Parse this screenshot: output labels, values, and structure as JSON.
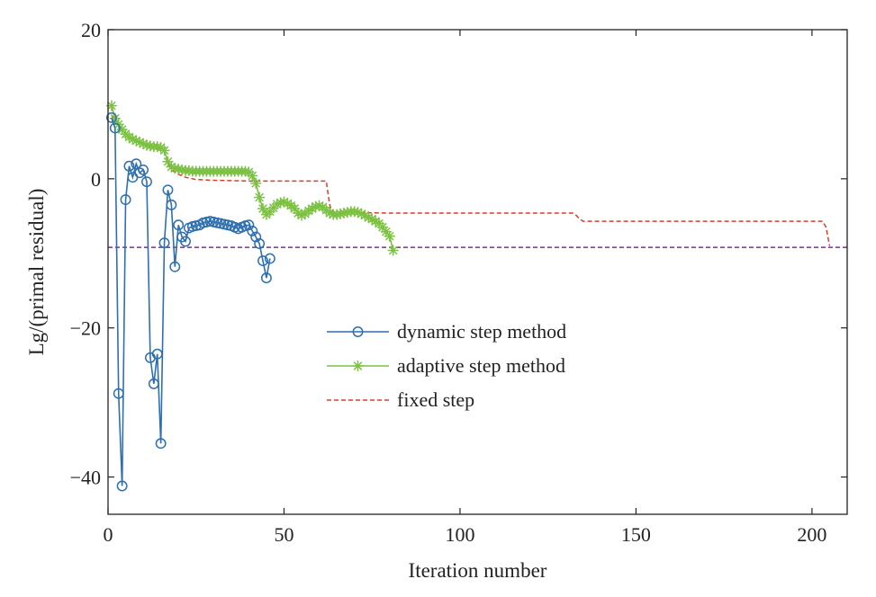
{
  "chart_data": {
    "type": "line",
    "title": "",
    "xlabel": "Iteration number",
    "ylabel": "Lg/(primal residual)",
    "xlim": [
      0,
      210
    ],
    "ylim": [
      -45,
      20
    ],
    "xticks": [
      0,
      50,
      100,
      150,
      200
    ],
    "yticks": [
      -40,
      -20,
      0,
      20
    ],
    "grid": false,
    "legend_position": "center",
    "series": [
      {
        "name": "dynamic step method",
        "color": "#2e6fb0",
        "marker": "circle",
        "line": "solid",
        "x": [
          1,
          2,
          3,
          4,
          5,
          6,
          7,
          8,
          9,
          10,
          11,
          12,
          13,
          14,
          15,
          16,
          17,
          18,
          19,
          20,
          21,
          22,
          23,
          24,
          25,
          26,
          27,
          28,
          29,
          30,
          31,
          32,
          33,
          34,
          35,
          36,
          37,
          38,
          39,
          40,
          41,
          42,
          43,
          44,
          45,
          46
        ],
        "y": [
          8.2,
          6.8,
          -28.8,
          -41.2,
          -2.8,
          1.7,
          0.2,
          2.0,
          0.8,
          1.2,
          -0.4,
          -24.0,
          -27.5,
          -23.5,
          -35.5,
          -8.6,
          -1.5,
          -3.5,
          -11.8,
          -6.2,
          -7.8,
          -8.4,
          -6.6,
          -6.4,
          -6.3,
          -6.2,
          -5.9,
          -5.8,
          -5.7,
          -5.8,
          -5.9,
          -6.0,
          -6.1,
          -6.2,
          -6.3,
          -6.5,
          -6.7,
          -6.5,
          -6.3,
          -6.2,
          -7.0,
          -7.8,
          -8.7,
          -11.0,
          -13.3,
          -10.7
        ]
      },
      {
        "name": "adaptive step method",
        "color": "#7cc242",
        "marker": "asterisk",
        "line": "solid",
        "x": [
          1,
          2,
          3,
          4,
          5,
          6,
          7,
          8,
          9,
          10,
          11,
          12,
          13,
          14,
          15,
          16,
          17,
          18,
          19,
          20,
          21,
          22,
          23,
          24,
          25,
          26,
          27,
          28,
          29,
          30,
          31,
          32,
          33,
          34,
          35,
          36,
          37,
          38,
          39,
          40,
          41,
          42,
          43,
          44,
          45,
          46,
          47,
          48,
          49,
          50,
          51,
          52,
          53,
          54,
          55,
          56,
          57,
          58,
          59,
          60,
          61,
          62,
          63,
          64,
          65,
          66,
          67,
          68,
          69,
          70,
          71,
          72,
          73,
          74,
          75,
          76,
          77,
          78,
          79,
          80,
          81
        ],
        "y": [
          9.8,
          8.1,
          7.3,
          6.6,
          6.0,
          5.6,
          5.3,
          5.1,
          4.9,
          4.7,
          4.5,
          4.4,
          4.3,
          4.3,
          4.2,
          3.8,
          2.3,
          1.6,
          1.4,
          1.3,
          1.2,
          1.1,
          1.1,
          1.0,
          1.0,
          1.0,
          1.0,
          1.0,
          1.0,
          1.0,
          1.0,
          1.0,
          1.0,
          1.0,
          1.0,
          1.0,
          1.0,
          1.0,
          1.0,
          0.9,
          0.4,
          -0.6,
          -2.5,
          -4.0,
          -4.8,
          -4.4,
          -3.9,
          -3.4,
          -3.2,
          -3.1,
          -3.3,
          -3.6,
          -4.0,
          -4.6,
          -4.9,
          -4.7,
          -4.3,
          -4.0,
          -3.7,
          -3.6,
          -3.8,
          -4.2,
          -4.6,
          -4.8,
          -4.8,
          -4.7,
          -4.6,
          -4.5,
          -4.4,
          -4.4,
          -4.5,
          -4.7,
          -4.9,
          -5.2,
          -5.4,
          -5.7,
          -6.0,
          -6.5,
          -7.1,
          -7.7,
          -9.6
        ]
      },
      {
        "name": "fixed step",
        "color": "#e03a2a",
        "marker": "none",
        "line": "dashed",
        "x": [
          1,
          3,
          5,
          8,
          12,
          15,
          16,
          17,
          18,
          20,
          22,
          25,
          30,
          40,
          50,
          62,
          62.5,
          63,
          63.5,
          64,
          80,
          100,
          132,
          133,
          134,
          135,
          150,
          180,
          203,
          204,
          205
        ],
        "y": [
          8.5,
          7.3,
          6.0,
          5.0,
          4.3,
          3.9,
          3.7,
          2.2,
          1.2,
          0.6,
          0.2,
          -0.1,
          -0.2,
          -0.3,
          -0.3,
          -0.3,
          -2.0,
          -3.5,
          -4.3,
          -4.5,
          -4.6,
          -4.6,
          -4.6,
          -4.9,
          -5.4,
          -5.7,
          -5.7,
          -5.7,
          -5.7,
          -6.5,
          -9.0
        ]
      },
      {
        "name": "",
        "color": "#7b2d9e",
        "marker": "none",
        "line": "dashed",
        "x": [
          0,
          210
        ],
        "y": [
          -9.2,
          -9.2
        ]
      }
    ]
  }
}
